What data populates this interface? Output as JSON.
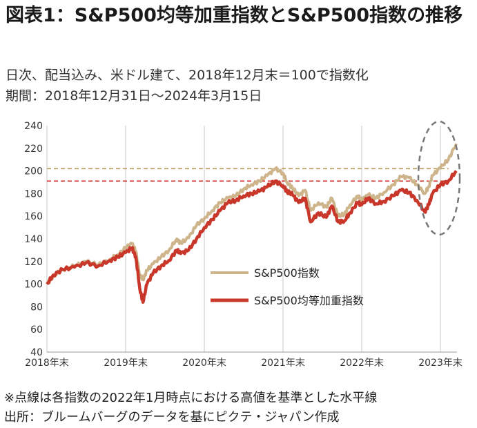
{
  "header": {
    "title": "図表1：S&P500均等加重指数とS&P500指数の推移",
    "subtitle1": "日次、配当込み、米ドル建て、2018年12月末＝100で指数化",
    "subtitle2": "期間：2018年12月31日～2024年3月15日"
  },
  "footer": {
    "note1": "※点線は各指数の2022年1月時点における高値を基準とした水平線",
    "note2": "出所：ブルームバーグのデータを基にピクテ・ジャパン作成"
  },
  "chart_data": {
    "type": "line",
    "title": "図表1：S&P500均等加重指数とS&P500指数の推移",
    "xlabel": "",
    "ylabel": "",
    "x_ticks": [
      "2018年末",
      "2019年末",
      "2020年末",
      "2021年末",
      "2022年末",
      "2023年末"
    ],
    "xlim": [
      2019.0,
      2024.21
    ],
    "ylim": [
      40,
      240
    ],
    "y_ticks": [
      40,
      60,
      80,
      100,
      120,
      140,
      160,
      180,
      200,
      220,
      240
    ],
    "grid": "vertical",
    "legend_position": "center-right",
    "reference_lines": [
      {
        "series": "S&P500指数",
        "value": 202,
        "style": "dashed",
        "color": "#b89a5c"
      },
      {
        "series": "S&P500均等加重指数",
        "value": 191,
        "style": "dashed",
        "color": "#cc3322"
      }
    ],
    "series": [
      {
        "name": "S&P500指数",
        "color": "#cdb48a",
        "x": [
          2019.0,
          2019.08,
          2019.2,
          2019.35,
          2019.5,
          2019.65,
          2019.8,
          2019.9,
          2020.0,
          2020.08,
          2020.13,
          2020.18,
          2020.22,
          2020.27,
          2020.35,
          2020.45,
          2020.55,
          2020.65,
          2020.7,
          2020.8,
          2020.9,
          2021.0,
          2021.1,
          2021.2,
          2021.3,
          2021.4,
          2021.5,
          2021.6,
          2021.7,
          2021.8,
          2021.9,
          2022.0,
          2022.05,
          2022.12,
          2022.2,
          2022.28,
          2022.35,
          2022.45,
          2022.55,
          2022.62,
          2022.7,
          2022.78,
          2022.85,
          2022.95,
          2023.0,
          2023.08,
          2023.18,
          2023.28,
          2023.4,
          2023.5,
          2023.6,
          2023.7,
          2023.8,
          2023.85,
          2023.9,
          2024.0,
          2024.1,
          2024.2
        ],
        "values": [
          100,
          107,
          113,
          116,
          120,
          117,
          122,
          126,
          132,
          136,
          129,
          108,
          104,
          112,
          118,
          124,
          130,
          140,
          136,
          141,
          152,
          158,
          165,
          172,
          176,
          178,
          184,
          188,
          191,
          196,
          202,
          198,
          190,
          185,
          178,
          183,
          165,
          172,
          168,
          176,
          160,
          162,
          170,
          178,
          174,
          179,
          176,
          181,
          188,
          195,
          194,
          188,
          180,
          186,
          196,
          203,
          210,
          224
        ]
      },
      {
        "name": "S&P500均等加重指数",
        "color": "#c8372a",
        "x": [
          2019.0,
          2019.08,
          2019.2,
          2019.35,
          2019.5,
          2019.65,
          2019.8,
          2019.9,
          2020.0,
          2020.08,
          2020.13,
          2020.18,
          2020.22,
          2020.27,
          2020.35,
          2020.45,
          2020.55,
          2020.65,
          2020.7,
          2020.8,
          2020.9,
          2021.0,
          2021.1,
          2021.2,
          2021.3,
          2021.4,
          2021.5,
          2021.6,
          2021.7,
          2021.8,
          2021.9,
          2022.0,
          2022.05,
          2022.12,
          2022.2,
          2022.28,
          2022.35,
          2022.45,
          2022.55,
          2022.62,
          2022.7,
          2022.78,
          2022.85,
          2022.95,
          2023.0,
          2023.08,
          2023.18,
          2023.28,
          2023.4,
          2023.5,
          2023.6,
          2023.7,
          2023.8,
          2023.85,
          2023.9,
          2024.0,
          2024.1,
          2024.2
        ],
        "values": [
          100,
          108,
          113,
          115,
          119,
          116,
          121,
          124,
          128,
          132,
          124,
          96,
          84,
          100,
          110,
          116,
          121,
          130,
          127,
          130,
          140,
          150,
          157,
          165,
          172,
          174,
          178,
          180,
          182,
          186,
          191,
          187,
          182,
          179,
          172,
          176,
          155,
          163,
          159,
          169,
          155,
          156,
          163,
          172,
          170,
          176,
          171,
          173,
          178,
          183,
          181,
          174,
          164,
          170,
          180,
          188,
          191,
          200
        ]
      }
    ]
  }
}
